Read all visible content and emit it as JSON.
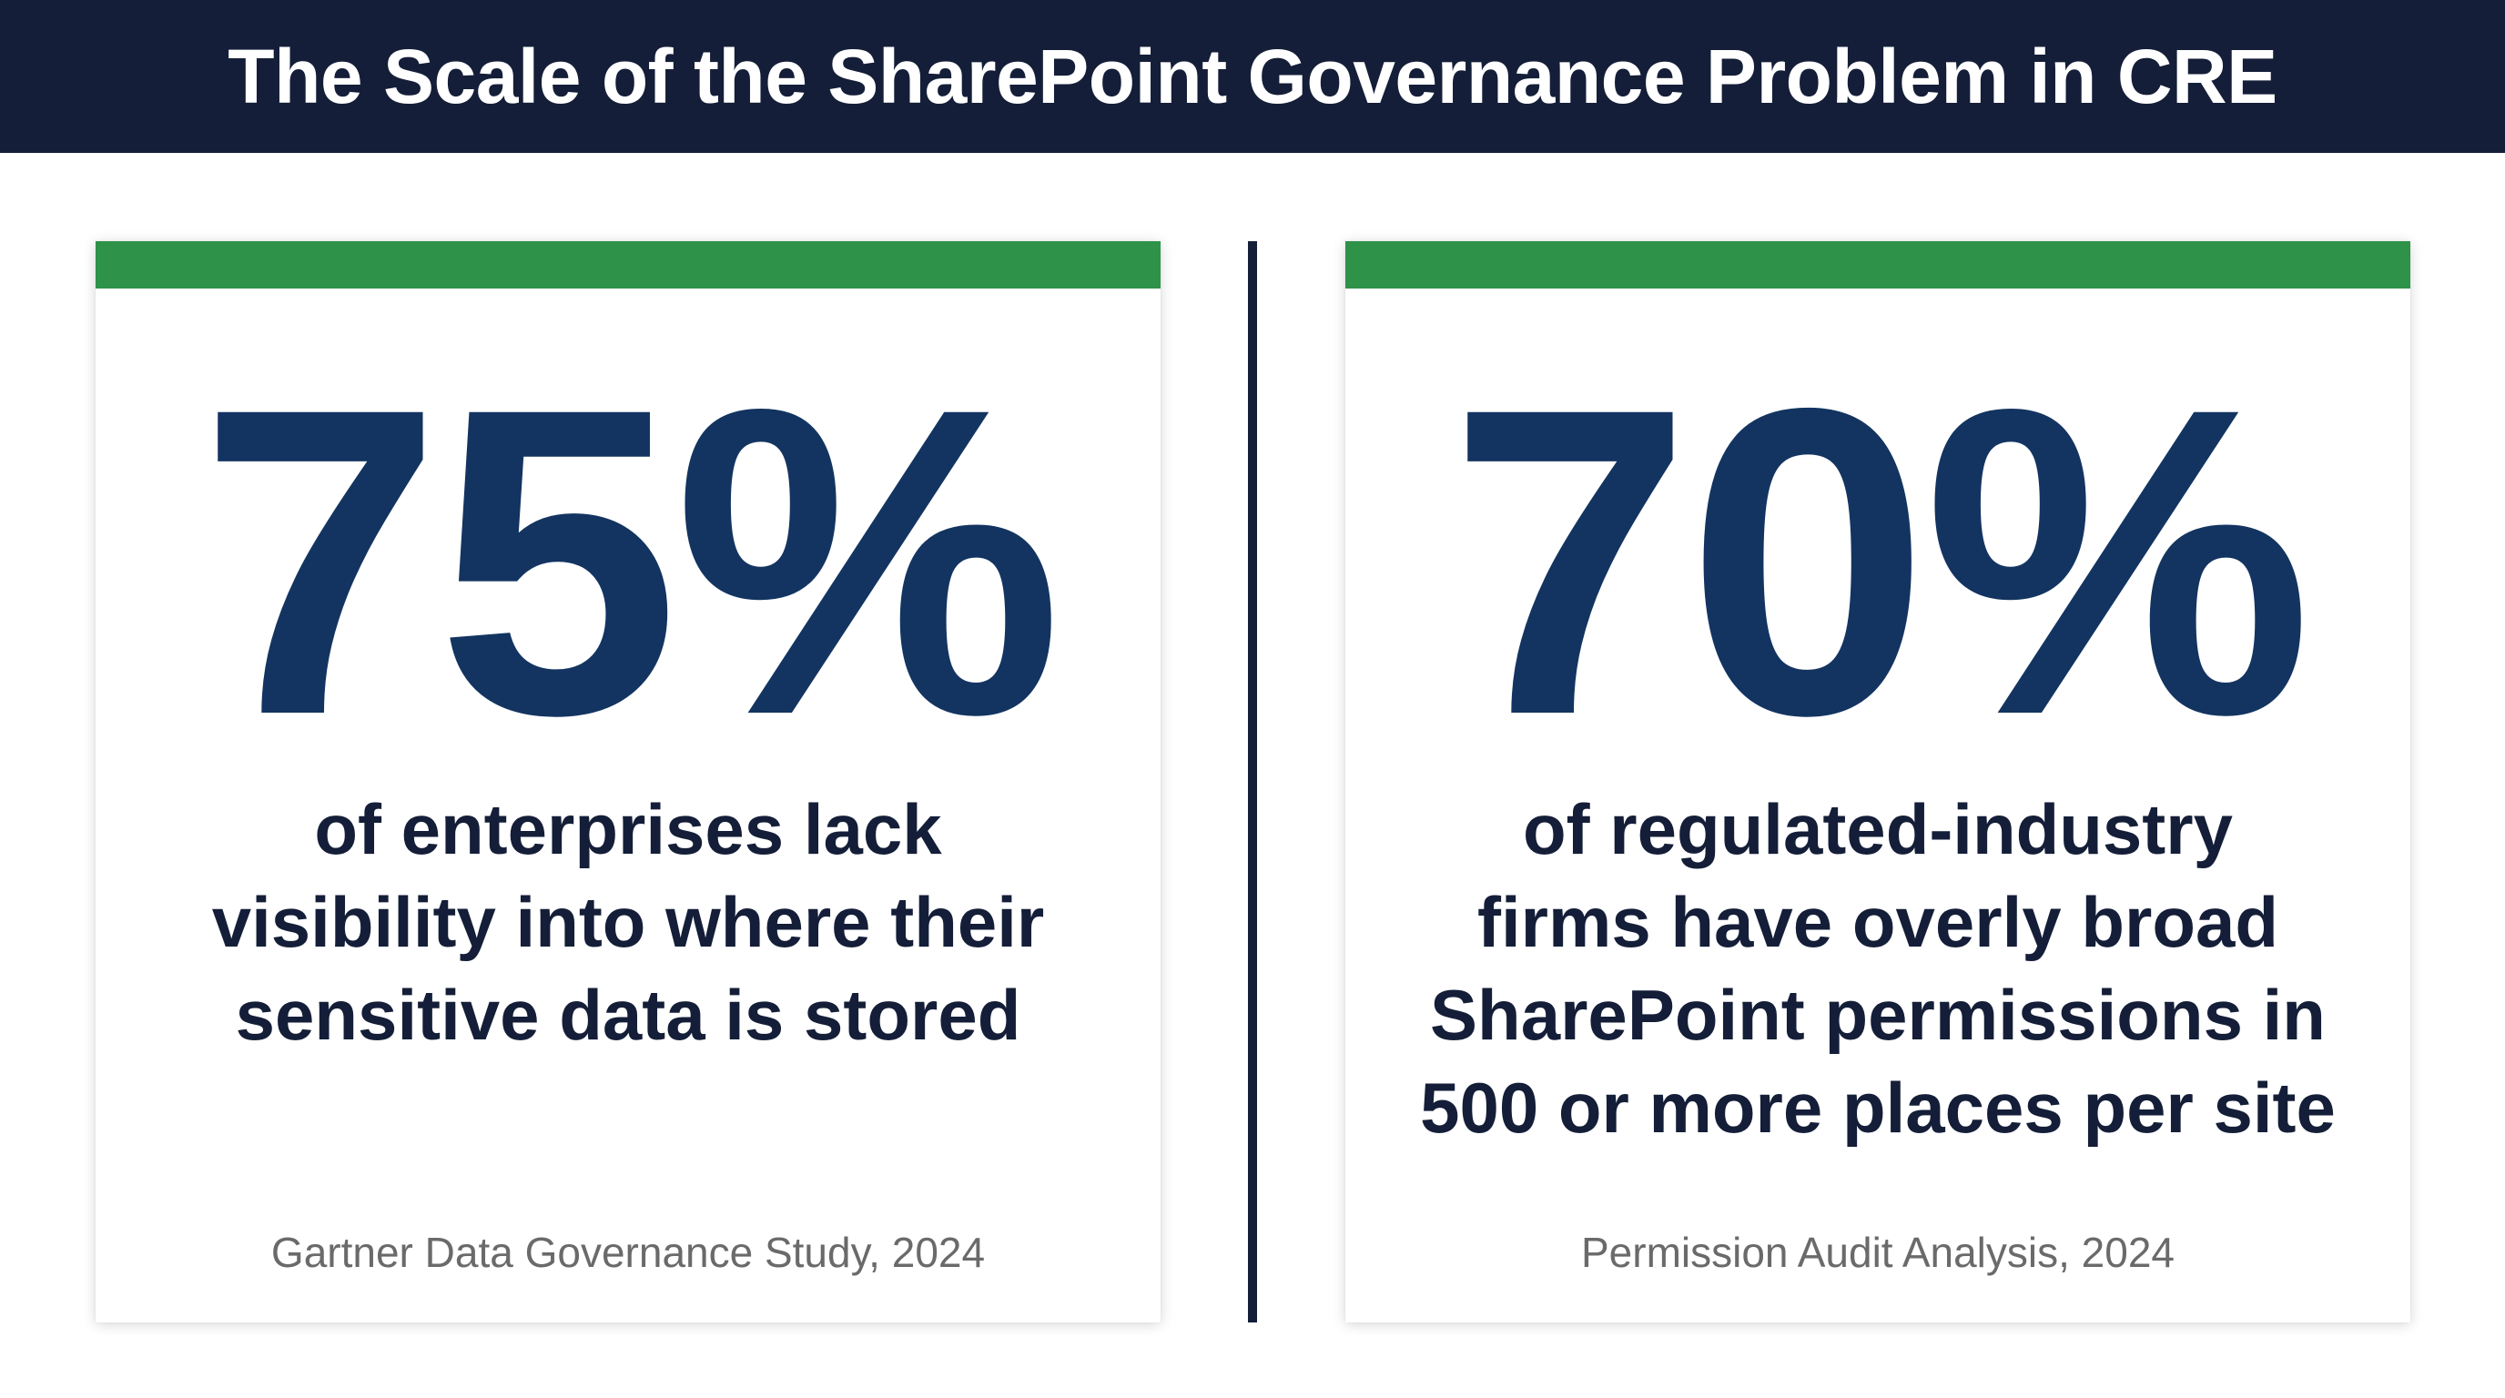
{
  "header": {
    "title": "The Scale of the SharePoint Governance Problem in CRE"
  },
  "colors": {
    "header_bg": "#141e38",
    "accent_green": "#2e9248",
    "stat_blue": "#133461",
    "text_dark": "#141e38",
    "source_gray": "#6a6a6a"
  },
  "cards": [
    {
      "stat": "75%",
      "description_lines": [
        "of enterprises lack",
        "visibility into where their",
        "sensitive data is stored"
      ],
      "source": "Gartner Data Governance Study, 2024"
    },
    {
      "stat": "70%",
      "description_lines": [
        "of regulated-industry",
        "firms have overly broad",
        "SharePoint permissions in",
        "500 or more places per site"
      ],
      "source": "Permission Audit Analysis, 2024"
    }
  ]
}
